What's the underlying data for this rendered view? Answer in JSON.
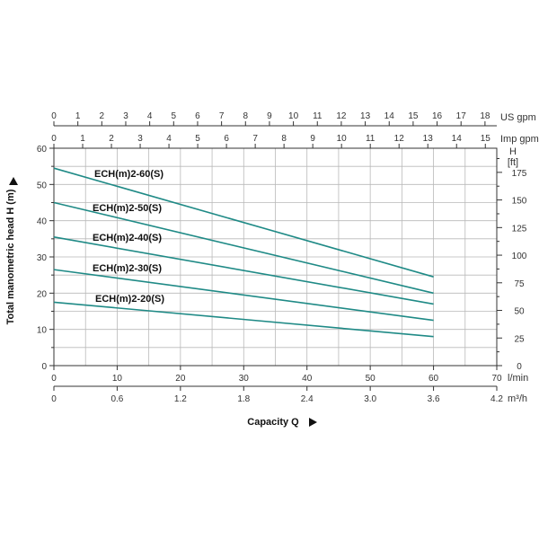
{
  "chart_data": {
    "type": "line",
    "xlabel": "Capacity Q",
    "ylabel": "Total manometric head H (m)",
    "xlim": [
      0,
      70
    ],
    "ylim": [
      0,
      60
    ],
    "x_unit": "l/min",
    "x_ticks": [
      0,
      10,
      20,
      30,
      40,
      50,
      60,
      70
    ],
    "y_ticks": [
      0,
      10,
      20,
      30,
      40,
      50,
      60
    ],
    "x2_unit": "m³/h",
    "x2_ticks": [
      "0",
      "0.6",
      "1.2",
      "1.8",
      "2.4",
      "3.0",
      "3.6",
      "4.2"
    ],
    "top_us_unit": "US gpm",
    "top_us_ticks": [
      0,
      1,
      2,
      3,
      4,
      5,
      6,
      7,
      8,
      9,
      10,
      11,
      12,
      13,
      14,
      15,
      16,
      17,
      18
    ],
    "top_imp_unit": "Imp gpm",
    "top_imp_ticks": [
      0,
      1,
      2,
      3,
      4,
      5,
      6,
      7,
      8,
      9,
      10,
      11,
      12,
      13,
      14,
      15
    ],
    "right_unit_h": "H",
    "right_unit_ft": "[ft]",
    "right_ticks": [
      0,
      25,
      50,
      75,
      100,
      125,
      150,
      175
    ],
    "series": [
      {
        "name": "ECH(m)2-60(S)",
        "x": [
          0,
          60
        ],
        "y": [
          54.5,
          24.5
        ]
      },
      {
        "name": "ECH(m)2-50(S)",
        "x": [
          0,
          60
        ],
        "y": [
          45,
          20
        ]
      },
      {
        "name": "ECH(m)2-40(S)",
        "x": [
          0,
          60
        ],
        "y": [
          35.5,
          17
        ]
      },
      {
        "name": "ECH(m)2-30(S)",
        "x": [
          0,
          60
        ],
        "y": [
          26.5,
          12.5
        ]
      },
      {
        "name": "ECH(m)2-20(S)",
        "x": [
          0,
          60
        ],
        "y": [
          17.5,
          8
        ]
      }
    ],
    "colors": {
      "curve": "#1f8a86",
      "grid": "#b9b9b9",
      "frame": "#333333"
    }
  }
}
